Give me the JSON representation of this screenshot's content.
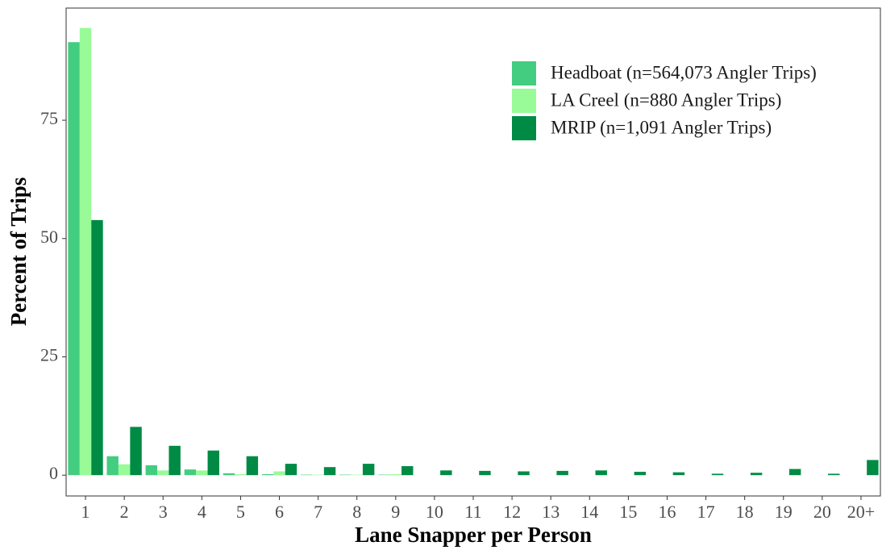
{
  "chart_data": {
    "type": "bar",
    "x_label": "Lane Snapper per Person",
    "y_label": "Percent of Trips",
    "categories": [
      "1",
      "2",
      "3",
      "4",
      "5",
      "6",
      "7",
      "8",
      "9",
      "10",
      "11",
      "12",
      "13",
      "14",
      "15",
      "16",
      "17",
      "18",
      "19",
      "20",
      "20+"
    ],
    "series": [
      {
        "name": "Headboat (n=564,073 Angler Trips)",
        "color": "#43CD80",
        "values": [
          91.5,
          4.0,
          2.1,
          1.2,
          0.4,
          0.2,
          0.1,
          0.1,
          0.1,
          0,
          0,
          0,
          0,
          0,
          0,
          0,
          0,
          0,
          0,
          0,
          0
        ]
      },
      {
        "name": "LA Creel (n=880 Angler Trips)",
        "color": "#98FB98",
        "values": [
          94.5,
          2.3,
          1.0,
          1.0,
          0.2,
          0.8,
          0.1,
          0.1,
          0.2,
          0,
          0,
          0,
          0,
          0,
          0,
          0,
          0,
          0,
          0,
          0,
          0
        ]
      },
      {
        "name": "MRIP (n=1,091 Angler Trips)",
        "color": "#008B45",
        "values": [
          53.9,
          10.2,
          6.2,
          5.2,
          4.0,
          2.4,
          1.7,
          2.4,
          1.9,
          1.0,
          0.9,
          0.8,
          0.9,
          1.0,
          0.7,
          0.6,
          0.3,
          0.5,
          1.3,
          0.3,
          3.2
        ]
      }
    ],
    "ylim": [
      -4.4,
      98.7
    ],
    "yticks": [
      0,
      25,
      50,
      75
    ],
    "grid": false,
    "legend": "top-right"
  }
}
